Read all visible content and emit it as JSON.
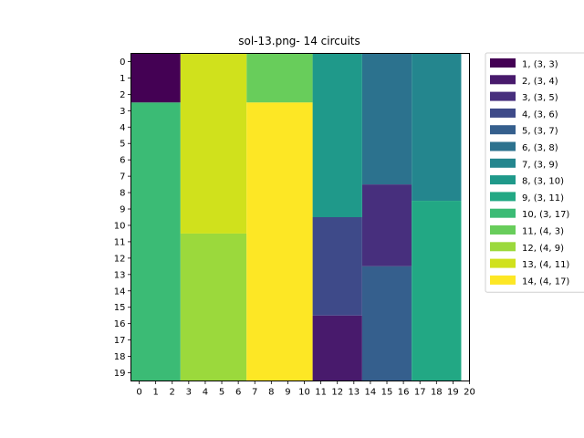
{
  "chart_data": {
    "type": "heatmap",
    "title": "sol-13.png- 14 circuits",
    "xlabel": "",
    "ylabel": "",
    "grid": false,
    "legend_position": "outside-right",
    "x_ticks": [
      "0",
      "1",
      "2",
      "3",
      "4",
      "5",
      "6",
      "7",
      "8",
      "9",
      "10",
      "11",
      "12",
      "13",
      "14",
      "15",
      "16",
      "17",
      "18",
      "19",
      "20"
    ],
    "y_ticks": [
      "0",
      "1",
      "2",
      "3",
      "4",
      "5",
      "6",
      "7",
      "8",
      "9",
      "10",
      "11",
      "12",
      "13",
      "14",
      "15",
      "16",
      "17",
      "18",
      "19"
    ],
    "xlim": [
      -0.5,
      20
    ],
    "ylim": [
      -0.5,
      19.5
    ],
    "circuits": [
      {
        "id": 1,
        "label": "1, (3, 3)",
        "color": "#440154",
        "x": 0,
        "y": 0,
        "w": 3,
        "h": 3
      },
      {
        "id": 2,
        "label": "2, (3, 4)",
        "color": "#481a6c",
        "x": 11,
        "y": 16,
        "w": 3,
        "h": 4
      },
      {
        "id": 3,
        "label": "3, (3, 5)",
        "color": "#472f7d",
        "x": 14,
        "y": 8,
        "w": 3,
        "h": 5
      },
      {
        "id": 4,
        "label": "4, (3, 6)",
        "color": "#3e4a89",
        "x": 11,
        "y": 10,
        "w": 3,
        "h": 6
      },
      {
        "id": 5,
        "label": "5, (3, 7)",
        "color": "#355f8d",
        "x": 14,
        "y": 13,
        "w": 3,
        "h": 7
      },
      {
        "id": 6,
        "label": "6, (3, 8)",
        "color": "#2c728e",
        "x": 14,
        "y": 0,
        "w": 3,
        "h": 8
      },
      {
        "id": 7,
        "label": "7, (3, 9)",
        "color": "#24868e",
        "x": 17,
        "y": 0,
        "w": 3,
        "h": 9
      },
      {
        "id": 8,
        "label": "8, (3, 10)",
        "color": "#1f998a",
        "x": 11,
        "y": 0,
        "w": 3,
        "h": 10
      },
      {
        "id": 9,
        "label": "9, (3, 11)",
        "color": "#22a884",
        "x": 17,
        "y": 9,
        "w": 3,
        "h": 11
      },
      {
        "id": 10,
        "label": "10, (3, 17)",
        "color": "#3bbb75",
        "x": 0,
        "y": 3,
        "w": 3,
        "h": 17
      },
      {
        "id": 11,
        "label": "11, (4, 3)",
        "color": "#68cd5b",
        "x": 7,
        "y": 0,
        "w": 4,
        "h": 3
      },
      {
        "id": 12,
        "label": "12, (4, 9)",
        "color": "#9bd93c",
        "x": 3,
        "y": 11,
        "w": 4,
        "h": 9
      },
      {
        "id": 13,
        "label": "13, (4, 11)",
        "color": "#d0e11c",
        "x": 3,
        "y": 0,
        "w": 4,
        "h": 11
      },
      {
        "id": 14,
        "label": "14, (4, 17)",
        "color": "#fde725",
        "x": 7,
        "y": 3,
        "w": 4,
        "h": 17
      }
    ]
  }
}
